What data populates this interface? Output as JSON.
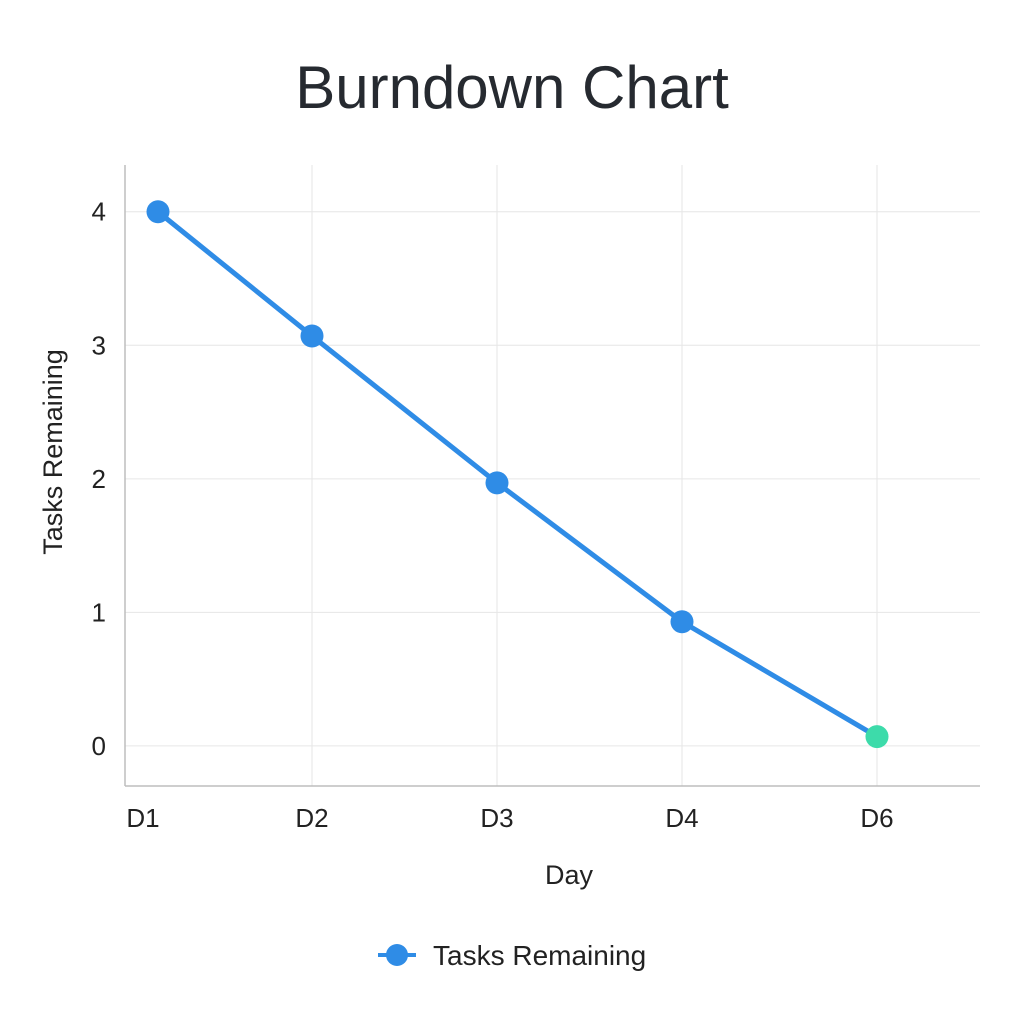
{
  "chart_data": {
    "type": "line",
    "title": "Burndown Chart",
    "xlabel": "Day",
    "ylabel": "Tasks Remaining",
    "categories": [
      "D1",
      "D2",
      "D3",
      "D4",
      "D6"
    ],
    "x": [
      1,
      2,
      3,
      4,
      5
    ],
    "series": [
      {
        "name": "Tasks Remaining",
        "values": [
          4,
          3.07,
          1.97,
          0.93,
          0.07
        ],
        "color": "#2f8ce6",
        "last_point_color": "#3ddbaa"
      }
    ],
    "yticks": [
      "0",
      "1",
      "2",
      "3",
      "4"
    ],
    "ylim": [
      -0.3,
      4.35
    ],
    "grid": true,
    "legend": "bottom-center"
  }
}
